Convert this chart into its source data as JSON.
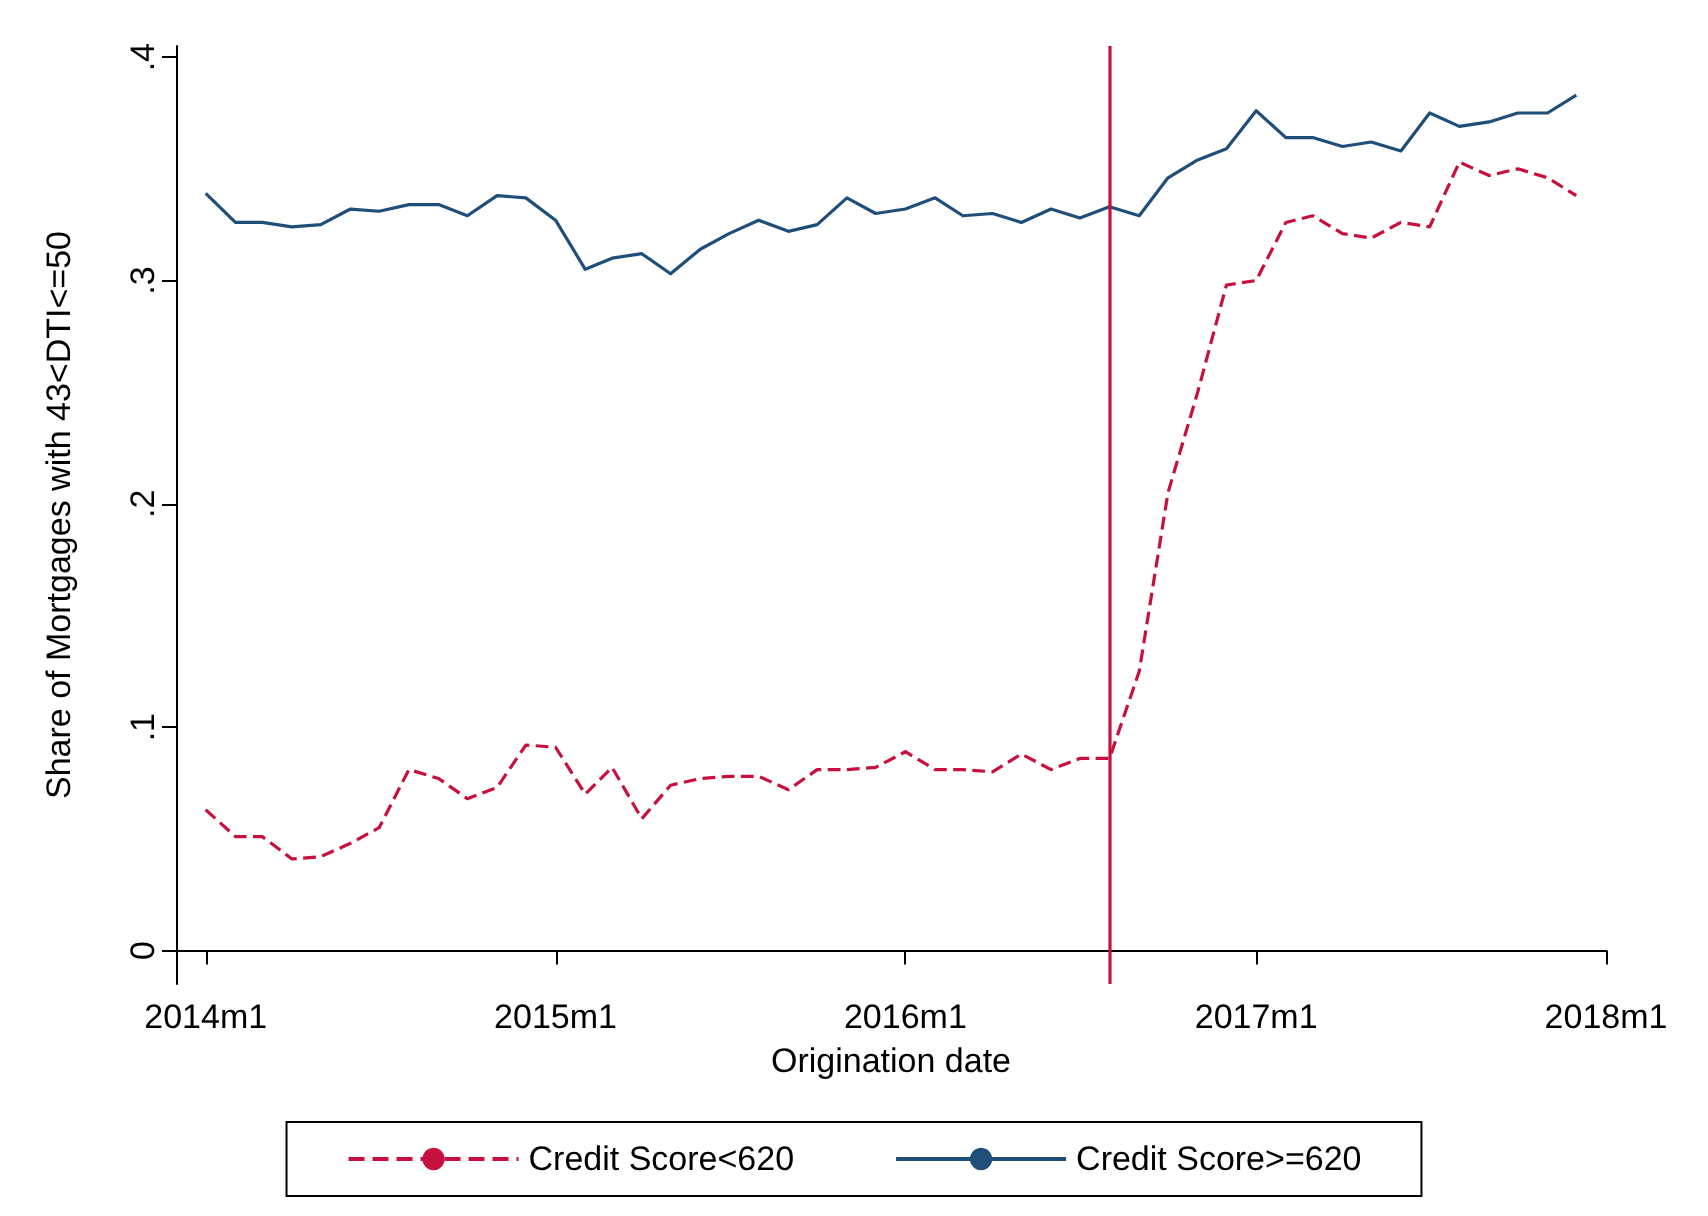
{
  "chart_data": {
    "type": "line",
    "xlabel": "Origination date",
    "ylabel": "Share of Mortgages with 43<DTI<=50",
    "x": [
      "2014-01",
      "2014-02",
      "2014-03",
      "2014-04",
      "2014-05",
      "2014-06",
      "2014-07",
      "2014-08",
      "2014-09",
      "2014-10",
      "2014-11",
      "2014-12",
      "2015-01",
      "2015-02",
      "2015-03",
      "2015-04",
      "2015-05",
      "2015-06",
      "2015-07",
      "2015-08",
      "2015-09",
      "2015-10",
      "2015-11",
      "2015-12",
      "2016-01",
      "2016-02",
      "2016-03",
      "2016-04",
      "2016-05",
      "2016-06",
      "2016-07",
      "2016-08",
      "2016-09",
      "2016-10",
      "2016-11",
      "2016-12",
      "2017-01",
      "2017-02",
      "2017-03",
      "2017-04",
      "2017-05",
      "2017-06",
      "2017-07",
      "2017-08",
      "2017-09",
      "2017-10",
      "2017-11",
      "2017-12"
    ],
    "series": [
      {
        "name": "Credit Score<620",
        "color": "#c8103e",
        "line_style": "dashed",
        "values": [
          0.063,
          0.051,
          0.051,
          0.041,
          0.042,
          0.048,
          0.055,
          0.081,
          0.077,
          0.068,
          0.073,
          0.092,
          0.091,
          0.07,
          0.082,
          0.059,
          0.074,
          0.077,
          0.078,
          0.078,
          0.072,
          0.081,
          0.081,
          0.082,
          0.089,
          0.081,
          0.081,
          0.08,
          0.088,
          0.081,
          0.086,
          0.086,
          0.125,
          0.205,
          0.25,
          0.298,
          0.3,
          0.326,
          0.329,
          0.321,
          0.319,
          0.326,
          0.324,
          0.353,
          0.347,
          0.35,
          0.346,
          0.338
        ]
      },
      {
        "name": "Credit Score>=620",
        "color": "#1f4e79",
        "line_style": "solid",
        "values": [
          0.339,
          0.326,
          0.326,
          0.324,
          0.325,
          0.332,
          0.331,
          0.334,
          0.334,
          0.329,
          0.338,
          0.337,
          0.327,
          0.305,
          0.31,
          0.312,
          0.303,
          0.314,
          0.321,
          0.327,
          0.322,
          0.325,
          0.337,
          0.33,
          0.332,
          0.337,
          0.329,
          0.33,
          0.326,
          0.332,
          0.328,
          0.333,
          0.329,
          0.346,
          0.354,
          0.359,
          0.376,
          0.364,
          0.364,
          0.36,
          0.362,
          0.358,
          0.375,
          0.369,
          0.371,
          0.375,
          0.375,
          0.383
        ]
      }
    ],
    "xlim": [
      "2013-12",
      "2018-01"
    ],
    "xticks": [
      {
        "value": "2014-01",
        "label": "2014m1"
      },
      {
        "value": "2015-01",
        "label": "2015m1"
      },
      {
        "value": "2016-01",
        "label": "2016m1"
      },
      {
        "value": "2017-01",
        "label": "2017m1"
      },
      {
        "value": "2018-01",
        "label": "2018m1"
      }
    ],
    "ylim": [
      -0.015,
      0.405
    ],
    "yticks": [
      {
        "value": 0,
        "label": "0"
      },
      {
        "value": 0.1,
        "label": ".1"
      },
      {
        "value": 0.2,
        "label": ".2"
      },
      {
        "value": 0.3,
        "label": ".3"
      },
      {
        "value": 0.4,
        "label": ".4"
      }
    ],
    "ref_lines": [
      {
        "axis": "x",
        "value": "2016-08",
        "color": "#c8103e"
      }
    ],
    "grid": false,
    "legend": "bottom",
    "marker": "none"
  }
}
